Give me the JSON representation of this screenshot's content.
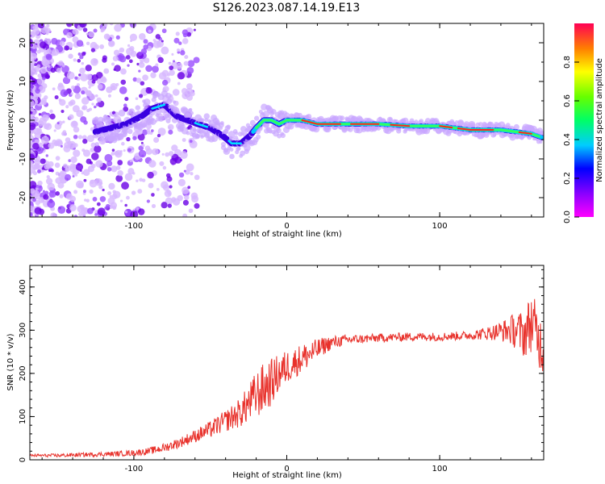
{
  "title": "S126.2023.087.14.19.E13",
  "chart_data": [
    {
      "type": "heatmap",
      "xlabel": "Height of straight line (km)",
      "ylabel": "Frequency (Hz)",
      "xlim": [
        -168,
        168
      ],
      "ylim": [
        -25,
        25
      ],
      "xticks": [
        -100,
        0,
        100
      ],
      "yticks": [
        -20,
        -10,
        0,
        10,
        20
      ],
      "grid": false,
      "ridge": {
        "x": [
          -125,
          -115,
          -105,
          -95,
          -88,
          -80,
          -72,
          -65,
          -58,
          -50,
          -42,
          -36,
          -30,
          -24,
          -20,
          -15,
          -10,
          -5,
          0,
          5,
          10,
          20,
          40,
          60,
          80,
          100,
          120,
          140,
          160,
          167
        ],
        "y": [
          -3,
          -2,
          -1,
          1,
          3,
          4,
          1,
          0,
          -1,
          -2,
          -4,
          -6,
          -6,
          -4,
          -2,
          0,
          0,
          -1,
          0,
          0,
          0,
          -1,
          -1,
          -1,
          -1.5,
          -1.5,
          -2.5,
          -2.5,
          -3.5,
          -4.5
        ]
      },
      "colorbar": {
        "label": "Normalized spectral amplitude",
        "range": [
          0,
          1
        ],
        "ticks": [
          "0.0",
          "0.2",
          "0.4",
          "0.6",
          "0.8"
        ]
      }
    },
    {
      "type": "line",
      "xlabel": "Height of straight line (km)",
      "ylabel": "SNR (10 * v/v)",
      "xlim": [
        -168,
        168
      ],
      "ylim": [
        0,
        450
      ],
      "xticks": [
        -100,
        0,
        100
      ],
      "yticks": [
        0,
        100,
        200,
        300,
        400
      ],
      "grid": false,
      "series": [
        {
          "color": "#e8312b",
          "x": [
            -168,
            -150,
            -130,
            -110,
            -100,
            -90,
            -80,
            -70,
            -60,
            -50,
            -40,
            -30,
            -25,
            -20,
            -15,
            -10,
            -5,
            0,
            5,
            10,
            15,
            20,
            25,
            30,
            40,
            50,
            60,
            80,
            100,
            120,
            135,
            145,
            150,
            155,
            160,
            165,
            168
          ],
          "y": [
            10,
            10,
            12,
            14,
            16,
            20,
            28,
            40,
            55,
            70,
            90,
            110,
            130,
            150,
            165,
            180,
            200,
            215,
            225,
            235,
            245,
            255,
            265,
            272,
            278,
            280,
            282,
            285,
            285,
            288,
            295,
            300,
            300,
            290,
            320,
            280,
            250
          ],
          "noise": [
            3,
            4,
            5,
            6,
            7,
            8,
            10,
            12,
            15,
            20,
            25,
            35,
            45,
            55,
            60,
            55,
            45,
            40,
            35,
            35,
            30,
            25,
            20,
            15,
            12,
            10,
            10,
            10,
            10,
            10,
            18,
            30,
            45,
            55,
            70,
            70,
            55
          ]
        }
      ]
    }
  ]
}
